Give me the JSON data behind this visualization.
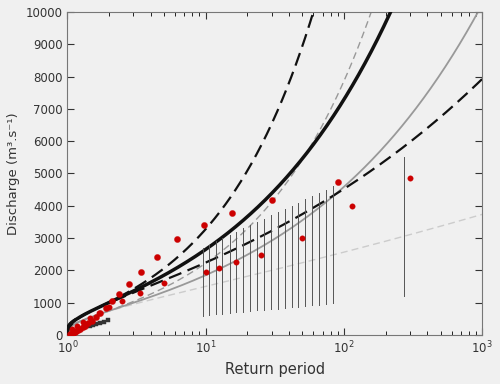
{
  "title": "",
  "xlabel": "Return period",
  "ylabel": "Discharge (m³.s⁻¹)",
  "xlim": [
    1,
    1000
  ],
  "ylim": [
    0,
    10000
  ],
  "yticks": [
    0,
    1000,
    2000,
    3000,
    4000,
    5000,
    6000,
    7000,
    8000,
    9000,
    10000
  ],
  "background_color": "#f0f0f0",
  "curves": {
    "whole_median": {
      "mu": 800,
      "sigma": 520,
      "xi": 0.38,
      "color": "#111111",
      "lw": 2.5,
      "ls": "solid"
    },
    "whole_upper": {
      "mu": 800,
      "sigma": 520,
      "xi": 0.6,
      "color": "#111111",
      "lw": 1.6,
      "ls": "dashed"
    },
    "whole_lower": {
      "mu": 800,
      "sigma": 520,
      "xi": 0.18,
      "color": "#111111",
      "lw": 1.6,
      "ls": "dashed"
    },
    "sys_median": {
      "mu": 600,
      "sigma": 380,
      "xi": 0.32,
      "color": "#999999",
      "lw": 1.3,
      "ls": "solid"
    },
    "sys_upper": {
      "mu": 600,
      "sigma": 380,
      "xi": 0.52,
      "color": "#999999",
      "lw": 1.0,
      "ls": "dashed"
    },
    "sys_lower": {
      "mu": 600,
      "sigma": 380,
      "xi": 0.05,
      "color": "#cccccc",
      "lw": 1.0,
      "ls": "dashed"
    }
  },
  "empirical_whole_T": [
    1.04,
    1.06,
    1.08,
    1.1,
    1.13,
    1.16,
    1.2,
    1.24,
    1.29,
    1.35,
    1.42,
    1.5,
    1.61,
    1.73,
    1.89,
    2.1,
    2.38,
    2.79,
    3.4,
    4.42,
    6.22,
    9.8,
    15.5,
    30.0,
    90.0
  ],
  "empirical_whole_Q": [
    18,
    30,
    46,
    65,
    88,
    116,
    149,
    188,
    235,
    292,
    362,
    447,
    553,
    683,
    843,
    1040,
    1285,
    1590,
    1965,
    2420,
    2960,
    3420,
    3780,
    4180,
    4750
  ],
  "empirical_sys_T": [
    1.08,
    1.17,
    1.29,
    1.45,
    1.68,
    2.0,
    2.5,
    3.33,
    5.0,
    10.0,
    12.5,
    16.7,
    25.0,
    50.0,
    114.0,
    300.0
  ],
  "empirical_sys_Q": [
    175,
    275,
    390,
    520,
    670,
    855,
    1065,
    1310,
    1600,
    1940,
    2080,
    2250,
    2480,
    3000,
    3980,
    4870
  ],
  "errbar_T": [
    9.5,
    10.5,
    11.8,
    13.2,
    14.9,
    16.7,
    18.7,
    21.0,
    23.5,
    26.4,
    29.6,
    33.2,
    37.3,
    41.8,
    46.9,
    52.6,
    59.0,
    66.2,
    74.3,
    83.3,
    270.0
  ],
  "errbar_lo": [
    600,
    620,
    640,
    660,
    680,
    700,
    720,
    740,
    760,
    780,
    800,
    820,
    840,
    860,
    880,
    900,
    920,
    940,
    960,
    980,
    1200
  ],
  "errbar_hi": [
    2700,
    2800,
    2900,
    3000,
    3100,
    3200,
    3300,
    3400,
    3500,
    3600,
    3700,
    3800,
    3900,
    4000,
    4100,
    4200,
    4300,
    4400,
    4500,
    4600,
    5500
  ],
  "hist_T": [
    1.45,
    1.53,
    1.62,
    1.72,
    1.84,
    1.97
  ],
  "hist_Q": [
    280,
    310,
    345,
    380,
    415,
    455
  ],
  "red_dot_color": "#cc0000",
  "red_dot_ms": 4.5
}
